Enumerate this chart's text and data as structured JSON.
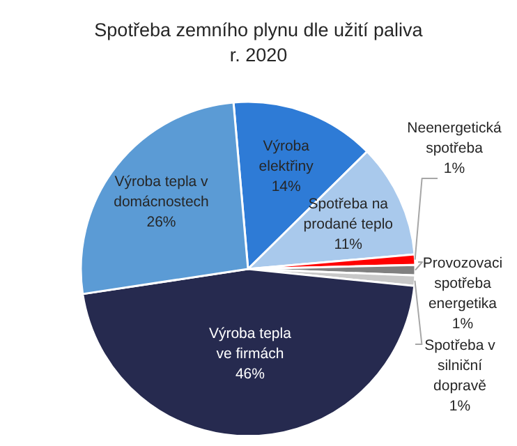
{
  "chart_data": {
    "type": "pie",
    "title": "Spotřeba zemního plynu dle užití paliva",
    "subtitle": "r. 2020",
    "categories": [
      "Výroba elektřiny",
      "Spotřeba na prodané teplo",
      "Neenergetická spotřeba",
      "Provozovaci spotřeba energetika",
      "Spotřeba v silniční dopravě",
      "Výroba tepla ve firmách",
      "Výroba tepla v domácnostech"
    ],
    "values": [
      14,
      11,
      1,
      1,
      1,
      46,
      26
    ],
    "value_labels": [
      "14%",
      "11%",
      "1%",
      "1%",
      "1%",
      "46%",
      "26%"
    ],
    "colors": [
      "#2e7bd6",
      "#a9c9ec",
      "#ff0000",
      "#808080",
      "#c8c8c8",
      "#262a4f",
      "#5b9bd5"
    ],
    "legend": false
  }
}
